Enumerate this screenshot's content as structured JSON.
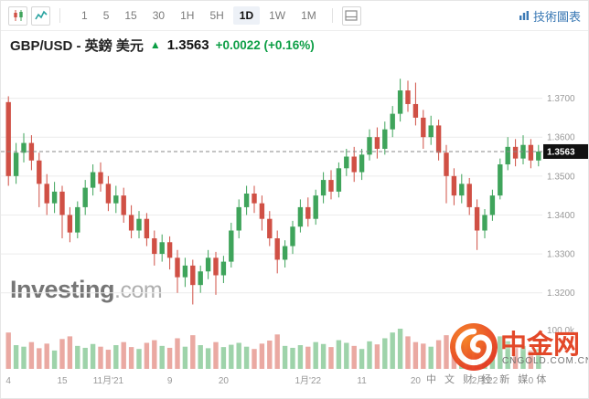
{
  "toolbar": {
    "intervals": [
      "1",
      "5",
      "15",
      "30",
      "1H",
      "5H",
      "1D",
      "1W",
      "1M"
    ],
    "active_interval": "1D",
    "technical_chart_link": "技術圖表"
  },
  "header": {
    "symbol_title": "GBP/USD - 英鎊 美元",
    "arrow": "▲",
    "price": "1.3563",
    "change": "+0.0022 (+0.16%)"
  },
  "watermark": {
    "investing_bold": "Investing",
    "investing_light": ".com"
  },
  "overlay_logo": {
    "tagline": "中 文 财 经 新 媒 体",
    "brand": "中金网",
    "domain": "CNGOLD.COM.CN"
  },
  "chart_data": {
    "type": "candlestick",
    "symbol": "GBP/USD",
    "interval": "1D",
    "last_price": 1.3563,
    "last_price_label": "1.3563",
    "price_range": [
      1.315,
      1.376
    ],
    "price_axis_values": [
      1.37,
      1.36,
      1.35,
      1.34,
      1.33,
      1.32
    ],
    "price_axis_ticks": [
      "1.3700",
      "1.3600",
      "1.3500",
      "1.3400",
      "1.3300",
      "1.3200"
    ],
    "volume_axis_label": "100.0k",
    "volume_max": 105,
    "x_ticks": [
      {
        "index": 0,
        "label": "4"
      },
      {
        "index": 7,
        "label": "15"
      },
      {
        "index": 13,
        "label": "11月'21"
      },
      {
        "index": 21,
        "label": "9"
      },
      {
        "index": 28,
        "label": "20"
      },
      {
        "index": 39,
        "label": "1月'22"
      },
      {
        "index": 46,
        "label": "11"
      },
      {
        "index": 53,
        "label": "20"
      },
      {
        "index": 62,
        "label": "2月'22"
      },
      {
        "index": 68,
        "label": "0"
      }
    ],
    "candles": [
      [
        1.369,
        1.3705,
        1.3475,
        1.35
      ],
      [
        1.35,
        1.3585,
        1.348,
        1.356
      ],
      [
        1.356,
        1.361,
        1.3535,
        1.3585
      ],
      [
        1.3585,
        1.3605,
        1.3515,
        1.354
      ],
      [
        1.354,
        1.356,
        1.342,
        1.348
      ],
      [
        1.348,
        1.3505,
        1.34,
        1.343
      ],
      [
        1.343,
        1.3485,
        1.3405,
        1.346
      ],
      [
        1.346,
        1.3475,
        1.334,
        1.34
      ],
      [
        1.34,
        1.342,
        1.333,
        1.3355
      ],
      [
        1.3355,
        1.3435,
        1.334,
        1.342
      ],
      [
        1.342,
        1.349,
        1.34,
        1.347
      ],
      [
        1.347,
        1.353,
        1.345,
        1.351
      ],
      [
        1.351,
        1.3535,
        1.346,
        1.348
      ],
      [
        1.348,
        1.35,
        1.341,
        1.343
      ],
      [
        1.343,
        1.3475,
        1.3405,
        1.345
      ],
      [
        1.345,
        1.347,
        1.338,
        1.34
      ],
      [
        1.34,
        1.3425,
        1.334,
        1.336
      ],
      [
        1.336,
        1.341,
        1.334,
        1.339
      ],
      [
        1.339,
        1.3405,
        1.332,
        1.334
      ],
      [
        1.334,
        1.336,
        1.327,
        1.33
      ],
      [
        1.33,
        1.335,
        1.328,
        1.333
      ],
      [
        1.333,
        1.3345,
        1.326,
        1.329
      ],
      [
        1.329,
        1.331,
        1.32,
        1.324
      ],
      [
        1.324,
        1.329,
        1.3215,
        1.327
      ],
      [
        1.327,
        1.3285,
        1.317,
        1.322
      ],
      [
        1.322,
        1.327,
        1.32,
        1.3255
      ],
      [
        1.3255,
        1.331,
        1.3235,
        1.329
      ],
      [
        1.329,
        1.3305,
        1.3195,
        1.3245
      ],
      [
        1.3245,
        1.3295,
        1.3225,
        1.328
      ],
      [
        1.328,
        1.338,
        1.3265,
        1.336
      ],
      [
        1.336,
        1.344,
        1.334,
        1.342
      ],
      [
        1.342,
        1.3475,
        1.34,
        1.3455
      ],
      [
        1.3455,
        1.3475,
        1.3405,
        1.343
      ],
      [
        1.343,
        1.345,
        1.336,
        1.339
      ],
      [
        1.339,
        1.341,
        1.332,
        1.334
      ],
      [
        1.334,
        1.336,
        1.325,
        1.3285
      ],
      [
        1.3285,
        1.3335,
        1.3265,
        1.332
      ],
      [
        1.332,
        1.3385,
        1.33,
        1.337
      ],
      [
        1.337,
        1.344,
        1.3355,
        1.342
      ],
      [
        1.342,
        1.3445,
        1.337,
        1.339
      ],
      [
        1.339,
        1.3465,
        1.3375,
        1.345
      ],
      [
        1.345,
        1.351,
        1.343,
        1.349
      ],
      [
        1.349,
        1.3515,
        1.344,
        1.346
      ],
      [
        1.346,
        1.3535,
        1.3445,
        1.352
      ],
      [
        1.352,
        1.357,
        1.35,
        1.355
      ],
      [
        1.355,
        1.3575,
        1.3485,
        1.351
      ],
      [
        1.351,
        1.357,
        1.349,
        1.3555
      ],
      [
        1.3555,
        1.362,
        1.354,
        1.36
      ],
      [
        1.36,
        1.3625,
        1.3545,
        1.357
      ],
      [
        1.357,
        1.364,
        1.3555,
        1.362
      ],
      [
        1.362,
        1.368,
        1.36,
        1.366
      ],
      [
        1.366,
        1.375,
        1.364,
        1.372
      ],
      [
        1.372,
        1.3745,
        1.3665,
        1.3685
      ],
      [
        1.3685,
        1.374,
        1.363,
        1.365
      ],
      [
        1.365,
        1.367,
        1.357,
        1.36
      ],
      [
        1.36,
        1.3655,
        1.358,
        1.363
      ],
      [
        1.363,
        1.3645,
        1.354,
        1.356
      ],
      [
        1.356,
        1.358,
        1.343,
        1.35
      ],
      [
        1.35,
        1.352,
        1.3425,
        1.345
      ],
      [
        1.345,
        1.3505,
        1.343,
        1.348
      ],
      [
        1.348,
        1.3495,
        1.34,
        1.342
      ],
      [
        1.342,
        1.344,
        1.331,
        1.336
      ],
      [
        1.336,
        1.3415,
        1.334,
        1.34
      ],
      [
        1.34,
        1.3465,
        1.3385,
        1.345
      ],
      [
        1.345,
        1.3545,
        1.344,
        1.353
      ],
      [
        1.353,
        1.36,
        1.3515,
        1.3575
      ],
      [
        1.3575,
        1.3595,
        1.3525,
        1.3545
      ],
      [
        1.3545,
        1.3605,
        1.353,
        1.358
      ],
      [
        1.358,
        1.3595,
        1.352,
        1.354
      ],
      [
        1.354,
        1.358,
        1.3525,
        1.3563
      ]
    ],
    "volumes": [
      95,
      62,
      58,
      70,
      54,
      66,
      48,
      78,
      85,
      60,
      55,
      65,
      58,
      50,
      62,
      70,
      57,
      52,
      68,
      75,
      60,
      55,
      80,
      58,
      88,
      62,
      54,
      70,
      57,
      63,
      68,
      58,
      52,
      66,
      74,
      90,
      60,
      55,
      62,
      58,
      70,
      65,
      57,
      75,
      68,
      60,
      52,
      72,
      64,
      80,
      95,
      105,
      85,
      70,
      66,
      58,
      75,
      88,
      70,
      62,
      90,
      78,
      60,
      68,
      85,
      72,
      55,
      60,
      48,
      52
    ],
    "colors": {
      "up": "#3fa45b",
      "down": "#d05045",
      "volume_up": "#9ed3aa",
      "volume_down": "#eaa9a2",
      "grid": "#ececec",
      "axis_text": "#999999",
      "dashed_line": "#888888",
      "tag_bg": "#111111",
      "tag_text": "#ffffff",
      "text_green": "#0c9e45",
      "link_blue": "#3c7ab5"
    }
  }
}
